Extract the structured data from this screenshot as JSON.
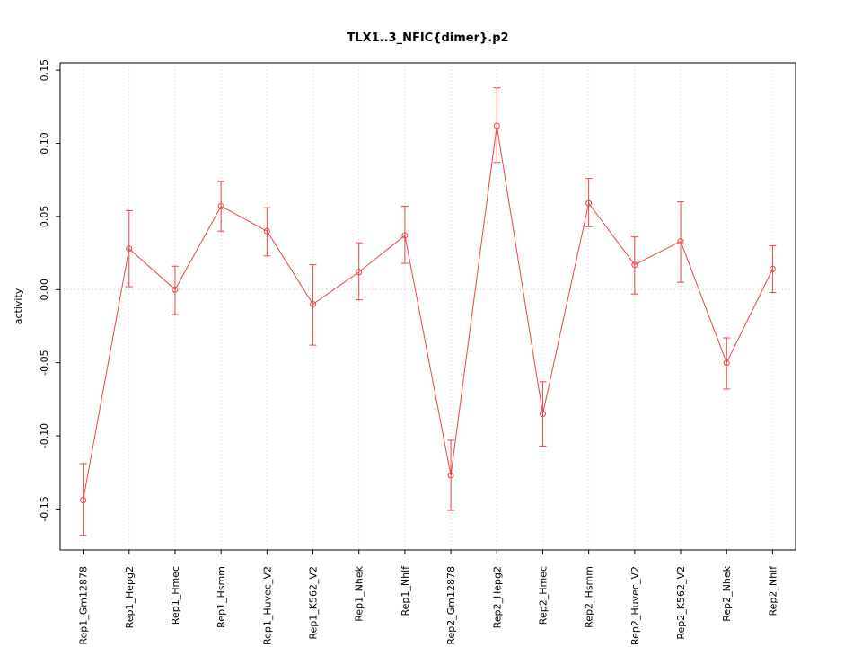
{
  "chart_data": {
    "type": "line",
    "title": "TLX1..3_NFIC{dimer}.p2",
    "xlabel": "",
    "ylabel": "activity",
    "ylim": [
      -0.178,
      0.155
    ],
    "yticks": [
      -0.15,
      -0.1,
      -0.05,
      0.0,
      0.05,
      0.1,
      0.15
    ],
    "grid": {
      "vertical_dotted_per_category": true,
      "horizontal_dotted_at_zero": true,
      "legend": "none"
    },
    "categories": [
      "Rep1_Gm12878",
      "Rep1_Hepg2",
      "Rep1_Hmec",
      "Rep1_Hsmm",
      "Rep1_Huvec_V2",
      "Rep1_K562_V2",
      "Rep1_Nhek",
      "Rep1_Nhlf",
      "Rep2_Gm12878",
      "Rep2_Hepg2",
      "Rep2_Hmec",
      "Rep2_Hsmm",
      "Rep2_Huvec_V2",
      "Rep2_K562_V2",
      "Rep2_Nhek",
      "Rep2_Nhlf"
    ],
    "series": [
      {
        "name": "activity",
        "values": [
          -0.144,
          0.028,
          0.0,
          0.057,
          0.04,
          -0.01,
          0.012,
          0.037,
          -0.127,
          0.112,
          -0.085,
          0.059,
          0.017,
          0.033,
          -0.05,
          0.014
        ],
        "error_low": [
          -0.168,
          0.002,
          -0.017,
          0.04,
          0.023,
          -0.038,
          -0.007,
          0.018,
          -0.151,
          0.087,
          -0.107,
          0.043,
          -0.003,
          0.005,
          -0.068,
          -0.002
        ],
        "error_high": [
          -0.119,
          0.054,
          0.016,
          0.074,
          0.056,
          0.017,
          0.032,
          0.057,
          -0.103,
          0.138,
          -0.063,
          0.076,
          0.036,
          0.06,
          -0.033,
          0.03
        ]
      }
    ],
    "colors": {
      "series": "#EE4444",
      "grid": "#C9C9C9",
      "box": "#000000",
      "background": "#FFFFFF"
    }
  }
}
